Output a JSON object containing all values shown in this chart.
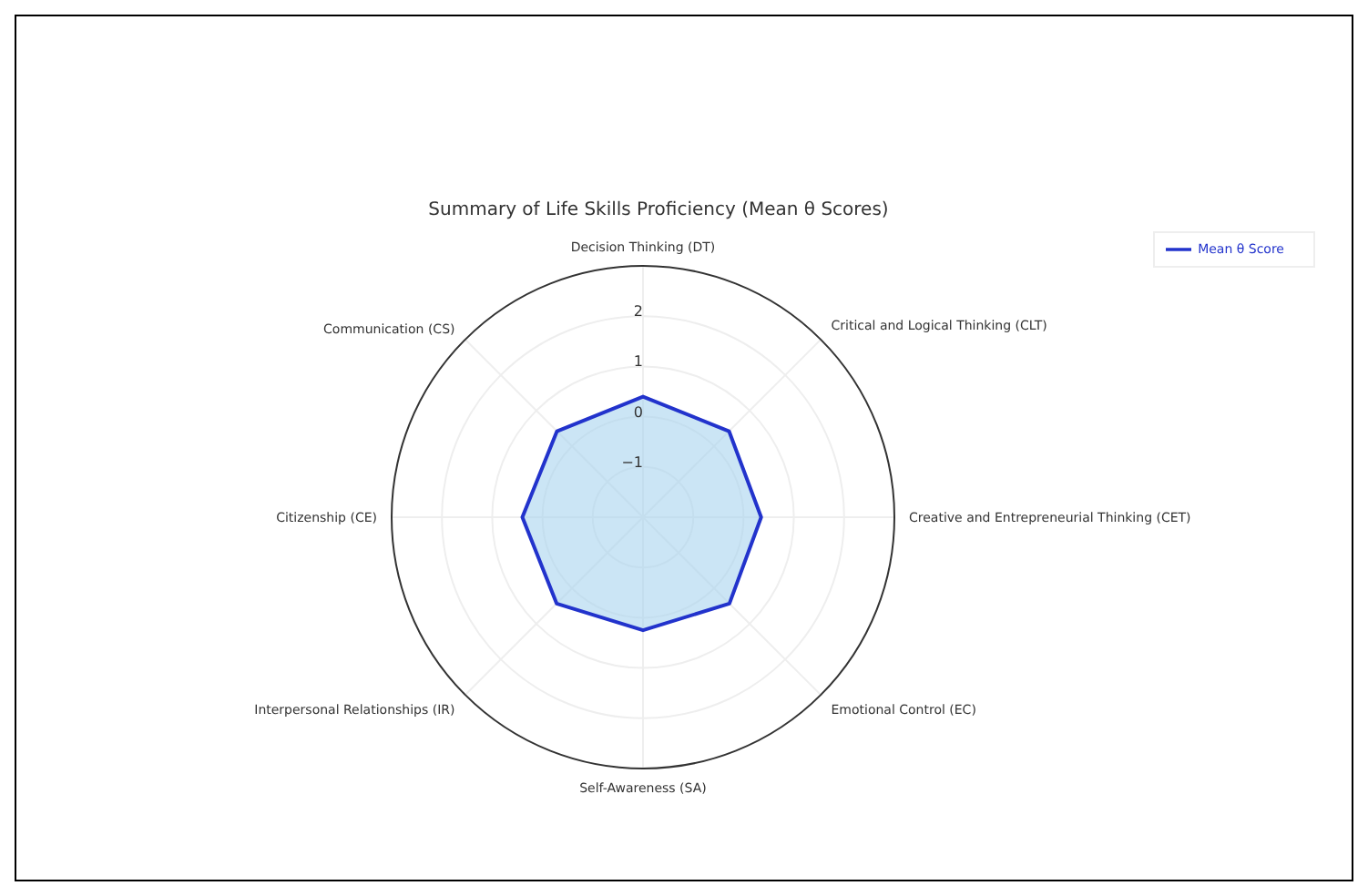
{
  "chart_data": {
    "type": "radar",
    "title": "Summary of Life Skills Proficiency (Mean θ Scores)",
    "categories": [
      "Decision Thinking (DT)",
      "Critical and Logical Thinking (CLT)",
      "Creative and Entrepreneurial Thinking (CET)",
      "Emotional Control (EC)",
      "Self-Awareness (SA)",
      "Interpersonal Relationships (IR)",
      "Citizenship (CE)",
      "Communication (CS)"
    ],
    "series": [
      {
        "name": "Mean θ Score",
        "color": "#2233cc",
        "values": [
          0.4,
          0.42,
          0.35,
          0.43,
          0.25,
          0.43,
          0.4,
          0.42
        ]
      }
    ],
    "ylim": [
      -2,
      3
    ],
    "yticks": [
      -1,
      0,
      1,
      2
    ],
    "grid": true,
    "legend": "top right"
  }
}
